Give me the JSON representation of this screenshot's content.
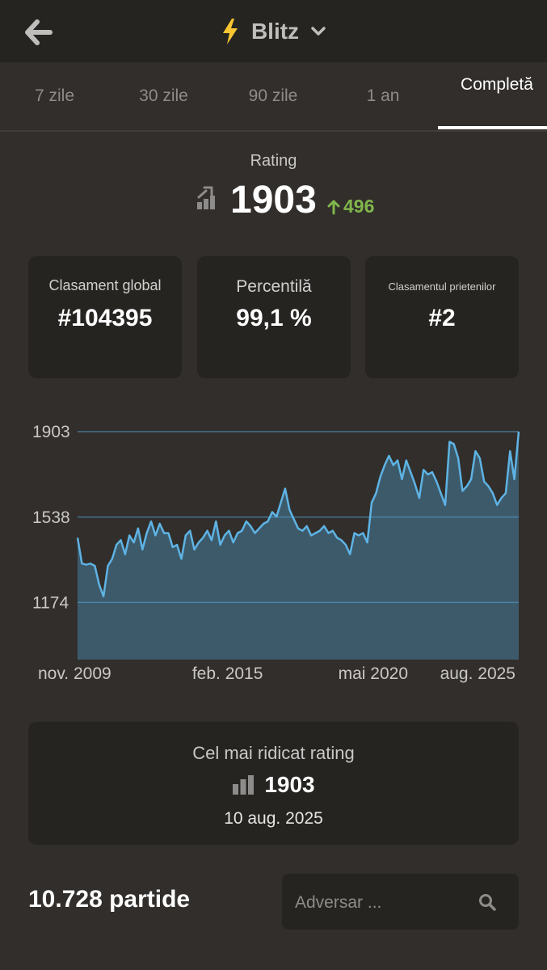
{
  "header": {
    "title": "Blitz"
  },
  "tabs": [
    {
      "label": "7 zile"
    },
    {
      "label": "30 zile"
    },
    {
      "label": "90 zile"
    },
    {
      "label": "1 an"
    },
    {
      "label": "Completă"
    }
  ],
  "rating": {
    "label": "Rating",
    "value": "1903",
    "delta": "496"
  },
  "stats": [
    {
      "label": "Clasament global",
      "value": "#104395"
    },
    {
      "label": "Percentilă",
      "value": "99,1 %"
    },
    {
      "label": "Clasamentul prietenilor",
      "value": "#2"
    }
  ],
  "chart_data": {
    "type": "area",
    "y_ticks": [
      "1903",
      "1538",
      "1174"
    ],
    "y_tick_values": [
      1903,
      1538,
      1174
    ],
    "ylim": [
      930,
      1903
    ],
    "x_tick_labels": [
      "nov. 2009",
      "feb. 2015",
      "mai 2020",
      "aug. 2025"
    ],
    "x_tick_pos": [
      0.0,
      0.34,
      0.67,
      1.0
    ],
    "series": [
      {
        "values": [
          1450,
          1340,
          1335,
          1340,
          1330,
          1250,
          1200,
          1330,
          1360,
          1420,
          1440,
          1380,
          1460,
          1430,
          1490,
          1400,
          1470,
          1520,
          1460,
          1510,
          1470,
          1470,
          1410,
          1420,
          1360,
          1460,
          1480,
          1400,
          1430,
          1450,
          1480,
          1440,
          1520,
          1420,
          1460,
          1480,
          1430,
          1470,
          1480,
          1520,
          1500,
          1470,
          1490,
          1510,
          1520,
          1560,
          1540,
          1600,
          1660,
          1570,
          1530,
          1490,
          1480,
          1500,
          1460,
          1470,
          1480,
          1500,
          1470,
          1480,
          1450,
          1440,
          1420,
          1380,
          1470,
          1460,
          1470,
          1430,
          1600,
          1640,
          1710,
          1760,
          1800,
          1760,
          1780,
          1700,
          1780,
          1730,
          1680,
          1620,
          1740,
          1720,
          1730,
          1690,
          1640,
          1590,
          1860,
          1850,
          1790,
          1650,
          1670,
          1700,
          1820,
          1790,
          1690,
          1670,
          1640,
          1590,
          1620,
          1640,
          1820,
          1700,
          1903
        ],
        "color": "#5eb3e4"
      }
    ]
  },
  "best": {
    "label": "Cel mai ridicat rating",
    "value": "1903",
    "date": "10 aug. 2025"
  },
  "games": {
    "count": "10.728 partide"
  },
  "search": {
    "placeholder": "Adversar ..."
  },
  "colors": {
    "accent_green": "#81b64c",
    "line_blue": "#5eb3e4",
    "bolt_yellow": "#f7c631"
  },
  "icons": [
    "arrow-left-icon",
    "lightning-bolt-icon",
    "chevron-down-icon",
    "rating-chart-icon",
    "arrow-up-icon",
    "bar-chart-icon",
    "search-icon"
  ]
}
